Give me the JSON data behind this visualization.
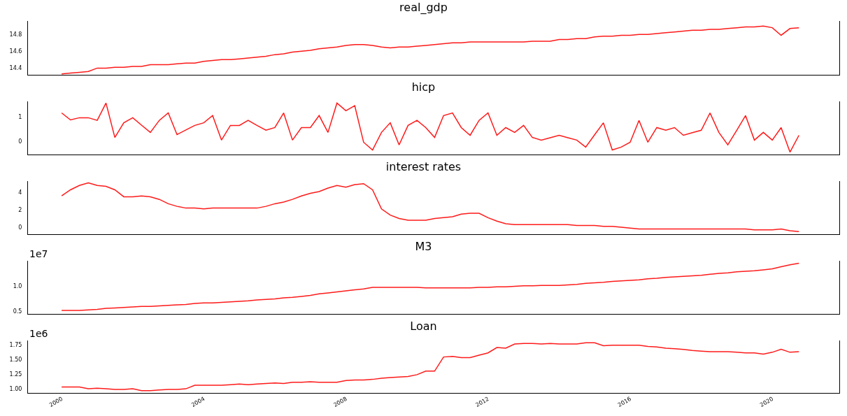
{
  "chart_data": [
    {
      "type": "line",
      "title": "real_gdp",
      "tick_labels": "y",
      "xlim": [
        "1999-01-20",
        "2021-11-20"
      ],
      "ylim": [
        14.32,
        14.96
      ],
      "yticks": [
        14.4,
        14.6,
        14.8
      ],
      "x": [
        "2000-01",
        "2000-04",
        "2000-07",
        "2000-10",
        "2001-01",
        "2001-04",
        "2001-07",
        "2001-10",
        "2002-01",
        "2002-04",
        "2002-07",
        "2002-10",
        "2003-01",
        "2003-04",
        "2003-07",
        "2003-10",
        "2004-01",
        "2004-04",
        "2004-07",
        "2004-10",
        "2005-01",
        "2005-04",
        "2005-07",
        "2005-10",
        "2006-01",
        "2006-04",
        "2006-07",
        "2006-10",
        "2007-01",
        "2007-04",
        "2007-07",
        "2007-10",
        "2008-01",
        "2008-04",
        "2008-07",
        "2008-10",
        "2009-01",
        "2009-04",
        "2009-07",
        "2009-10",
        "2010-01",
        "2010-04",
        "2010-07",
        "2010-10",
        "2011-01",
        "2011-04",
        "2011-07",
        "2011-10",
        "2012-01",
        "2012-04",
        "2012-07",
        "2012-10",
        "2013-01",
        "2013-04",
        "2013-07",
        "2013-10",
        "2014-01",
        "2014-04",
        "2014-07",
        "2014-10",
        "2015-01",
        "2015-04",
        "2015-07",
        "2015-10",
        "2016-01",
        "2016-04",
        "2016-07",
        "2016-10",
        "2017-01",
        "2017-04",
        "2017-07",
        "2017-10",
        "2018-01",
        "2018-04",
        "2018-07",
        "2018-10",
        "2019-01",
        "2019-04",
        "2019-07",
        "2019-10",
        "2020-01",
        "2020-04",
        "2020-07",
        "2020-10"
      ],
      "series": [
        {
          "color": "#ff1a1a",
          "values": [
            14.33,
            14.34,
            14.35,
            14.36,
            14.4,
            14.4,
            14.41,
            14.41,
            14.42,
            14.42,
            14.44,
            14.44,
            14.44,
            14.45,
            14.46,
            14.46,
            14.48,
            14.49,
            14.5,
            14.5,
            14.51,
            14.52,
            14.53,
            14.54,
            14.56,
            14.57,
            14.59,
            14.6,
            14.61,
            14.63,
            14.64,
            14.65,
            14.67,
            14.68,
            14.68,
            14.67,
            14.65,
            14.64,
            14.65,
            14.65,
            14.66,
            14.67,
            14.68,
            14.69,
            14.7,
            14.7,
            14.71,
            14.71,
            14.71,
            14.71,
            14.71,
            14.71,
            14.71,
            14.72,
            14.72,
            14.72,
            14.74,
            14.74,
            14.75,
            14.75,
            14.77,
            14.78,
            14.78,
            14.79,
            14.79,
            14.8,
            14.8,
            14.81,
            14.82,
            14.83,
            14.84,
            14.85,
            14.85,
            14.86,
            14.86,
            14.87,
            14.88,
            14.89,
            14.89,
            14.9,
            14.88,
            14.79,
            14.87,
            14.88
          ]
        }
      ]
    },
    {
      "type": "line",
      "title": "hicp",
      "tick_labels": "y",
      "xlim": [
        "1999-01-20",
        "2021-11-20"
      ],
      "ylim": [
        -0.56,
        1.65
      ],
      "yticks": [
        0,
        1
      ],
      "x": [
        "2000-01",
        "2000-04",
        "2000-07",
        "2000-10",
        "2001-01",
        "2001-04",
        "2001-07",
        "2001-10",
        "2002-01",
        "2002-04",
        "2002-07",
        "2002-10",
        "2003-01",
        "2003-04",
        "2003-07",
        "2003-10",
        "2004-01",
        "2004-04",
        "2004-07",
        "2004-10",
        "2005-01",
        "2005-04",
        "2005-07",
        "2005-10",
        "2006-01",
        "2006-04",
        "2006-07",
        "2006-10",
        "2007-01",
        "2007-04",
        "2007-07",
        "2007-10",
        "2008-01",
        "2008-04",
        "2008-07",
        "2008-10",
        "2009-01",
        "2009-04",
        "2009-07",
        "2009-10",
        "2010-01",
        "2010-04",
        "2010-07",
        "2010-10",
        "2011-01",
        "2011-04",
        "2011-07",
        "2011-10",
        "2012-01",
        "2012-04",
        "2012-07",
        "2012-10",
        "2013-01",
        "2013-04",
        "2013-07",
        "2013-10",
        "2014-01",
        "2014-04",
        "2014-07",
        "2014-10",
        "2015-01",
        "2015-04",
        "2015-07",
        "2015-10",
        "2016-01",
        "2016-04",
        "2016-07",
        "2016-10",
        "2017-01",
        "2017-04",
        "2017-07",
        "2017-10",
        "2018-01",
        "2018-04",
        "2018-07",
        "2018-10",
        "2019-01",
        "2019-04",
        "2019-07",
        "2019-10",
        "2020-01",
        "2020-04",
        "2020-07",
        "2020-10"
      ],
      "series": [
        {
          "color": "#ff1a1a",
          "values": [
            1.17,
            0.88,
            0.97,
            0.97,
            0.86,
            1.58,
            0.15,
            0.76,
            0.97,
            0.66,
            0.36,
            0.86,
            1.17,
            0.27,
            0.46,
            0.65,
            0.76,
            1.06,
            0.04,
            0.65,
            0.65,
            0.86,
            0.65,
            0.45,
            0.56,
            1.17,
            0.04,
            0.56,
            0.56,
            1.06,
            0.36,
            1.58,
            1.26,
            1.47,
            -0.05,
            -0.37,
            0.36,
            0.76,
            -0.16,
            0.65,
            0.86,
            0.56,
            0.15,
            1.06,
            1.17,
            0.56,
            0.24,
            0.86,
            1.17,
            0.24,
            0.56,
            0.36,
            0.65,
            0.15,
            0.04,
            0.14,
            0.24,
            0.14,
            0.04,
            -0.25,
            0.26,
            0.76,
            -0.37,
            -0.25,
            -0.05,
            0.86,
            -0.05,
            0.56,
            0.45,
            0.56,
            0.24,
            0.35,
            0.45,
            1.17,
            0.36,
            -0.16,
            0.45,
            1.06,
            0.04,
            0.36,
            0.04,
            0.56,
            -0.46,
            0.24
          ]
        }
      ]
    },
    {
      "type": "line",
      "title": "interest rates",
      "tick_labels": "y",
      "xlim": [
        "1999-01-20",
        "2021-11-20"
      ],
      "ylim": [
        -0.8,
        5.3
      ],
      "yticks": [
        0,
        2,
        4
      ],
      "x": [
        "2000-01",
        "2000-04",
        "2000-07",
        "2000-10",
        "2001-01",
        "2001-04",
        "2001-07",
        "2001-10",
        "2002-01",
        "2002-04",
        "2002-07",
        "2002-10",
        "2003-01",
        "2003-04",
        "2003-07",
        "2003-10",
        "2004-01",
        "2004-04",
        "2004-07",
        "2004-10",
        "2005-01",
        "2005-04",
        "2005-07",
        "2005-10",
        "2006-01",
        "2006-04",
        "2006-07",
        "2006-10",
        "2007-01",
        "2007-04",
        "2007-07",
        "2007-10",
        "2008-01",
        "2008-04",
        "2008-07",
        "2008-10",
        "2009-01",
        "2009-04",
        "2009-07",
        "2009-10",
        "2010-01",
        "2010-04",
        "2010-07",
        "2010-10",
        "2011-01",
        "2011-04",
        "2011-07",
        "2011-10",
        "2012-01",
        "2012-04",
        "2012-07",
        "2012-10",
        "2013-01",
        "2013-04",
        "2013-07",
        "2013-10",
        "2014-01",
        "2014-04",
        "2014-07",
        "2014-10",
        "2015-01",
        "2015-04",
        "2015-07",
        "2015-10",
        "2016-01",
        "2016-04",
        "2016-07",
        "2016-10",
        "2017-01",
        "2017-04",
        "2017-07",
        "2017-10",
        "2018-01",
        "2018-04",
        "2018-07",
        "2018-10",
        "2019-01",
        "2019-04",
        "2019-07",
        "2019-10",
        "2020-01",
        "2020-04",
        "2020-07",
        "2020-10"
      ],
      "series": [
        {
          "color": "#ff1a1a",
          "values": [
            3.6,
            4.3,
            4.8,
            5.1,
            4.8,
            4.7,
            4.3,
            3.5,
            3.5,
            3.6,
            3.5,
            3.2,
            2.7,
            2.4,
            2.2,
            2.2,
            2.1,
            2.2,
            2.2,
            2.2,
            2.2,
            2.2,
            2.2,
            2.4,
            2.7,
            2.9,
            3.2,
            3.6,
            3.9,
            4.1,
            4.5,
            4.8,
            4.6,
            4.9,
            5.0,
            4.3,
            2.1,
            1.4,
            1.0,
            0.8,
            0.8,
            0.8,
            1.0,
            1.1,
            1.2,
            1.5,
            1.6,
            1.6,
            1.1,
            0.7,
            0.4,
            0.3,
            0.3,
            0.3,
            0.3,
            0.3,
            0.3,
            0.3,
            0.2,
            0.2,
            0.2,
            0.1,
            0.1,
            0.0,
            -0.1,
            -0.2,
            -0.2,
            -0.2,
            -0.2,
            -0.2,
            -0.2,
            -0.2,
            -0.2,
            -0.2,
            -0.2,
            -0.2,
            -0.2,
            -0.2,
            -0.3,
            -0.3,
            -0.3,
            -0.2,
            -0.4,
            -0.5
          ]
        }
      ]
    },
    {
      "type": "line",
      "title": "M3",
      "tick_labels": "y",
      "annotations": [
        "1e7"
      ],
      "xlim": [
        "1999-01-20",
        "2021-11-20"
      ],
      "ylim": [
        0.44,
        1.5
      ],
      "yticks": [
        {
          "value": 0.5,
          "label": "0.5"
        },
        {
          "value": 1,
          "label": "1.0"
        }
      ],
      "x": [
        "2000-01",
        "2000-04",
        "2000-07",
        "2000-10",
        "2001-01",
        "2001-04",
        "2001-07",
        "2001-10",
        "2002-01",
        "2002-04",
        "2002-07",
        "2002-10",
        "2003-01",
        "2003-04",
        "2003-07",
        "2003-10",
        "2004-01",
        "2004-04",
        "2004-07",
        "2004-10",
        "2005-01",
        "2005-04",
        "2005-07",
        "2005-10",
        "2006-01",
        "2006-04",
        "2006-07",
        "2006-10",
        "2007-01",
        "2007-04",
        "2007-07",
        "2007-10",
        "2008-01",
        "2008-04",
        "2008-07",
        "2008-10",
        "2009-01",
        "2009-04",
        "2009-07",
        "2009-10",
        "2010-01",
        "2010-04",
        "2010-07",
        "2010-10",
        "2011-01",
        "2011-04",
        "2011-07",
        "2011-10",
        "2012-01",
        "2012-04",
        "2012-07",
        "2012-10",
        "2013-01",
        "2013-04",
        "2013-07",
        "2013-10",
        "2014-01",
        "2014-04",
        "2014-07",
        "2014-10",
        "2015-01",
        "2015-04",
        "2015-07",
        "2015-10",
        "2016-01",
        "2016-04",
        "2016-07",
        "2016-10",
        "2017-01",
        "2017-04",
        "2017-07",
        "2017-10",
        "2018-01",
        "2018-04",
        "2018-07",
        "2018-10",
        "2019-01",
        "2019-04",
        "2019-07",
        "2019-10",
        "2020-01",
        "2020-04",
        "2020-07",
        "2020-10"
      ],
      "series": [
        {
          "color": "#ff1a1a",
          "values": [
            0.51,
            0.51,
            0.51,
            0.52,
            0.53,
            0.55,
            0.56,
            0.57,
            0.58,
            0.59,
            0.59,
            0.6,
            0.61,
            0.62,
            0.63,
            0.65,
            0.66,
            0.66,
            0.67,
            0.68,
            0.69,
            0.7,
            0.72,
            0.73,
            0.74,
            0.76,
            0.77,
            0.79,
            0.81,
            0.84,
            0.86,
            0.88,
            0.9,
            0.92,
            0.94,
            0.97,
            0.97,
            0.97,
            0.97,
            0.97,
            0.97,
            0.96,
            0.96,
            0.96,
            0.96,
            0.96,
            0.96,
            0.97,
            0.97,
            0.98,
            0.98,
            0.99,
            1,
            1,
            1.01,
            1.01,
            1.01,
            1.02,
            1.03,
            1.05,
            1.06,
            1.07,
            1.09,
            1.1,
            1.11,
            1.12,
            1.14,
            1.15,
            1.17,
            1.18,
            1.19,
            1.2,
            1.21,
            1.23,
            1.25,
            1.26,
            1.28,
            1.29,
            1.3,
            1.32,
            1.34,
            1.38,
            1.42,
            1.45
          ]
        }
      ]
    },
    {
      "type": "line",
      "title": "Loan",
      "annotations": [
        "1e6"
      ],
      "xlim": [
        "1999-01-20",
        "2021-11-20"
      ],
      "ylim": [
        0.93,
        1.82
      ],
      "yticks": [
        {
          "value": 1,
          "label": "1.00"
        },
        {
          "value": 1.25,
          "label": "1.25"
        },
        {
          "value": 1.5,
          "label": "1.50"
        },
        {
          "value": 1.75,
          "label": "1.75"
        }
      ],
      "xticks": [
        "2000",
        "2004",
        "2008",
        "2012",
        "2016",
        "2020"
      ],
      "x": [
        "2000-01",
        "2000-04",
        "2000-07",
        "2000-10",
        "2001-01",
        "2001-04",
        "2001-07",
        "2001-10",
        "2002-01",
        "2002-04",
        "2002-07",
        "2002-10",
        "2003-01",
        "2003-04",
        "2003-07",
        "2003-10",
        "2004-01",
        "2004-04",
        "2004-07",
        "2004-10",
        "2005-01",
        "2005-04",
        "2005-07",
        "2005-10",
        "2006-01",
        "2006-04",
        "2006-07",
        "2006-10",
        "2007-01",
        "2007-04",
        "2007-07",
        "2007-10",
        "2008-01",
        "2008-04",
        "2008-07",
        "2008-10",
        "2009-01",
        "2009-04",
        "2009-07",
        "2009-10",
        "2010-01",
        "2010-04",
        "2010-07",
        "2010-10",
        "2011-01",
        "2011-04",
        "2011-07",
        "2011-10",
        "2012-01",
        "2012-04",
        "2012-07",
        "2012-10",
        "2013-01",
        "2013-04",
        "2013-07",
        "2013-10",
        "2014-01",
        "2014-04",
        "2014-07",
        "2014-10",
        "2015-01",
        "2015-04",
        "2015-07",
        "2015-10",
        "2016-01",
        "2016-04",
        "2016-07",
        "2016-10",
        "2017-01",
        "2017-04",
        "2017-07",
        "2017-10",
        "2018-01",
        "2018-04",
        "2018-07",
        "2018-10",
        "2019-01",
        "2019-04",
        "2019-07",
        "2019-10",
        "2020-01",
        "2020-04",
        "2020-07",
        "2020-10"
      ],
      "series": [
        {
          "color": "#ff1a1a",
          "values": [
            1.03,
            1.03,
            1.03,
            1,
            1.01,
            1,
            0.99,
            0.99,
            1,
            0.97,
            0.97,
            0.98,
            0.99,
            0.99,
            1,
            1.06,
            1.06,
            1.06,
            1.06,
            1.07,
            1.08,
            1.07,
            1.08,
            1.09,
            1.1,
            1.09,
            1.11,
            1.11,
            1.12,
            1.11,
            1.11,
            1.11,
            1.14,
            1.15,
            1.15,
            1.16,
            1.18,
            1.19,
            1.2,
            1.21,
            1.24,
            1.3,
            1.3,
            1.54,
            1.55,
            1.53,
            1.53,
            1.57,
            1.61,
            1.7,
            1.69,
            1.76,
            1.77,
            1.77,
            1.76,
            1.77,
            1.76,
            1.76,
            1.76,
            1.78,
            1.78,
            1.73,
            1.74,
            1.74,
            1.74,
            1.74,
            1.72,
            1.71,
            1.69,
            1.68,
            1.67,
            1.65,
            1.64,
            1.63,
            1.63,
            1.63,
            1.62,
            1.61,
            1.61,
            1.59,
            1.62,
            1.67,
            1.62,
            1.63
          ]
        }
      ]
    }
  ]
}
